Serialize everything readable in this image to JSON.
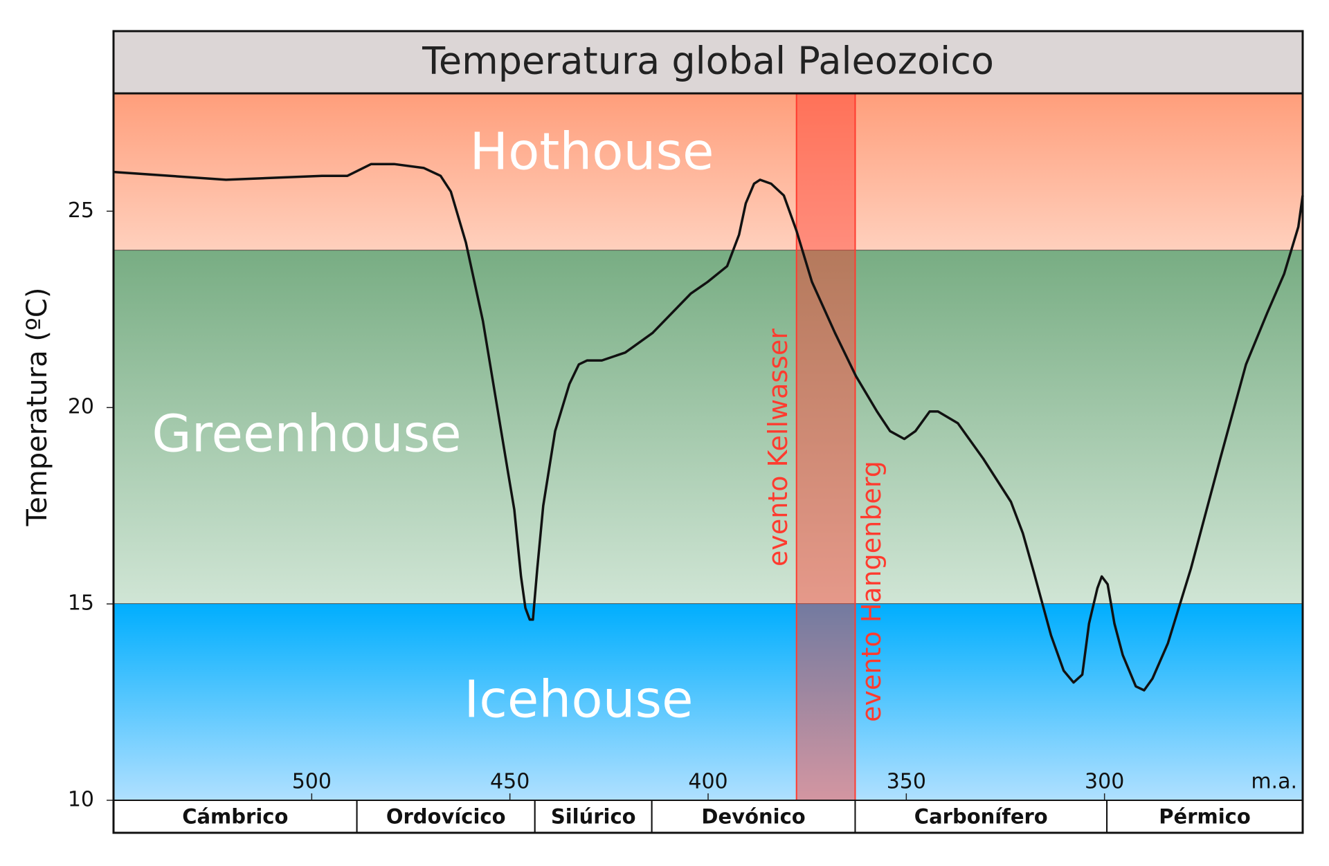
{
  "chart_data": {
    "type": "line",
    "title": "Temperatura global Paleozoico",
    "y_label": "Temperatura (ºC)",
    "x_label": "m.a.",
    "xlim": [
      550,
      250
    ],
    "xticks": [
      500,
      450,
      400,
      350,
      300
    ],
    "ylim": [
      10,
      28
    ],
    "yticks": [
      10,
      15,
      20,
      25
    ],
    "bands": [
      {
        "name": "Hothouse",
        "from": 24,
        "to": 28,
        "color": [
          "#ff9e7b",
          "#ffd0bd"
        ]
      },
      {
        "name": "Greenhouse",
        "from": 15,
        "to": 24,
        "color": [
          "#78ad83",
          "#d0e5d5"
        ]
      },
      {
        "name": "Icehouse",
        "from": 10,
        "to": 15,
        "color": [
          "#00aefe",
          "#b0e0ff"
        ]
      }
    ],
    "events": [
      {
        "label": "evento Kellwasser",
        "x": 377.7
      },
      {
        "label": "evento Hangenberg",
        "x": 362.9
      }
    ],
    "event_color": "#ff3b2f",
    "periods": [
      {
        "name": "Cámbrico",
        "start": 550,
        "end": 488.6
      },
      {
        "name": "Ordovícico",
        "start": 488.6,
        "end": 443.7
      },
      {
        "name": "Silúrico",
        "start": 443.7,
        "end": 414.2
      },
      {
        "name": "Devónico",
        "start": 414.2,
        "end": 362.9
      },
      {
        "name": "Carbonífero",
        "start": 362.9,
        "end": 299.4
      },
      {
        "name": "Pérmico",
        "start": 299.4,
        "end": 250
      }
    ],
    "series": [
      {
        "color": "#111111",
        "x": [
          550,
          521.6,
          497.4,
          491,
          485,
          479.2,
          471.7,
          467.5,
          464.9,
          461.1,
          456.8,
          450.4,
          448.9,
          447.2,
          446.1,
          445,
          444.2,
          443.1,
          441.6,
          438.6,
          435,
          432.6,
          430.5,
          426.8,
          420.9,
          414,
          404.4,
          400.1,
          395.2,
          392.2,
          390.5,
          388.4,
          386.9,
          384.1,
          380.9,
          377.7,
          373.8,
          368,
          362.7,
          357.4,
          354.1,
          350.5,
          347.7,
          344.1,
          342,
          337,
          330.6,
          323.6,
          320.6,
          317.8,
          313.5,
          310.3,
          307.8,
          305.6,
          303.9,
          301.8,
          300.7,
          299.2,
          297.5,
          295.4,
          292.1,
          290,
          287.9,
          284,
          278.2,
          270.8,
          264.3,
          259,
          254.7,
          251.1,
          250
        ],
        "values": [
          26,
          25.8,
          25.9,
          25.9,
          26.2,
          26.2,
          26.1,
          25.9,
          25.5,
          24.2,
          22.2,
          18.3,
          17.4,
          15.7,
          14.9,
          14.6,
          14.6,
          15.9,
          17.5,
          19.4,
          20.6,
          21.1,
          21.2,
          21.2,
          21.4,
          21.9,
          22.9,
          23.2,
          23.6,
          24.4,
          25.2,
          25.7,
          25.8,
          25.7,
          25.4,
          24.5,
          23.2,
          21.9,
          20.8,
          19.9,
          19.4,
          19.2,
          19.4,
          19.9,
          19.9,
          19.6,
          18.7,
          17.6,
          16.8,
          15.8,
          14.2,
          13.3,
          13,
          13.2,
          14.5,
          15.4,
          15.7,
          15.5,
          14.5,
          13.7,
          12.9,
          12.8,
          13.1,
          14,
          15.9,
          18.7,
          21.1,
          22.4,
          23.4,
          24.6,
          25.4
        ]
      }
    ]
  }
}
